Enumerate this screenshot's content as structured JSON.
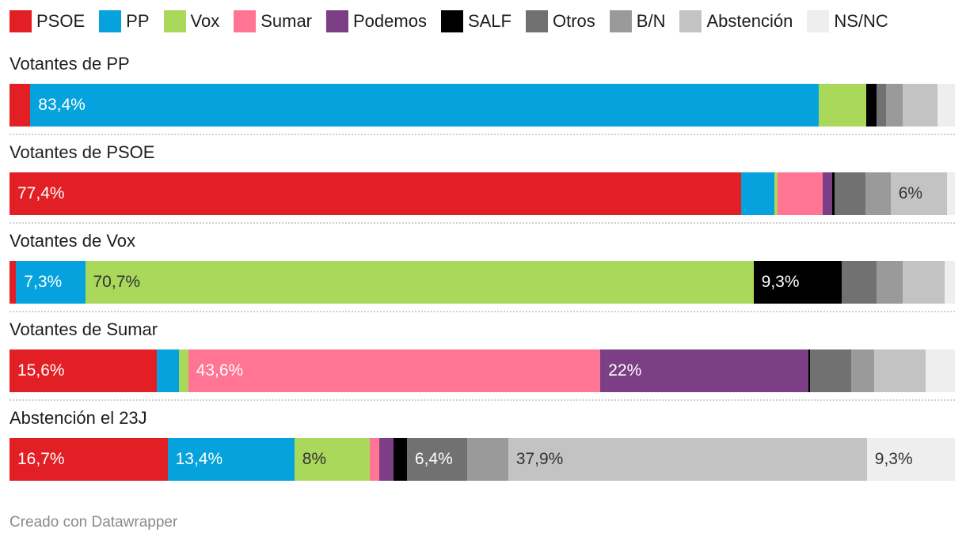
{
  "chart_data": {
    "type": "bar",
    "orientation": "horizontal",
    "stacked": true,
    "legend_position": "top",
    "categories": [
      "Votantes de PP",
      "Votantes de PSOE",
      "Votantes de Vox",
      "Votantes de Sumar",
      "Abstención el 23J"
    ],
    "series": [
      {
        "name": "PSOE",
        "color": "#e21f24",
        "values": [
          2.2,
          77.4,
          0.7,
          15.6,
          16.7
        ]
      },
      {
        "name": "PP",
        "color": "#05a2dd",
        "values": [
          83.4,
          3.5,
          7.3,
          2.3,
          13.4
        ]
      },
      {
        "name": "Vox",
        "color": "#a9d85a",
        "values": [
          5.0,
          0.3,
          70.7,
          1.0,
          8.0
        ]
      },
      {
        "name": "Sumar",
        "color": "#ff7593",
        "values": [
          0.0,
          4.8,
          0.0,
          43.6,
          1.0
        ]
      },
      {
        "name": "Podemos",
        "color": "#7c3f85",
        "values": [
          0.0,
          1.0,
          0.0,
          22.0,
          1.5
        ]
      },
      {
        "name": "SALF",
        "color": "#000000",
        "values": [
          1.1,
          0.3,
          9.3,
          0.2,
          1.4
        ]
      },
      {
        "name": "Otros",
        "color": "#717171",
        "values": [
          1.0,
          3.2,
          3.7,
          4.3,
          6.4
        ]
      },
      {
        "name": "B/N",
        "color": "#9a9a9a",
        "values": [
          1.8,
          2.7,
          2.8,
          2.5,
          4.3
        ]
      },
      {
        "name": "Abstención",
        "color": "#c3c3c3",
        "values": [
          3.7,
          6.0,
          4.4,
          5.4,
          37.9
        ]
      },
      {
        "name": "NS/NC",
        "color": "#eeeeee",
        "values": [
          1.8,
          0.8,
          1.1,
          3.1,
          9.3
        ]
      }
    ],
    "data_labels": [
      {
        "row": 0,
        "series": 1,
        "text": "83,4%",
        "dark": false
      },
      {
        "row": 1,
        "series": 0,
        "text": "77,4%",
        "dark": false
      },
      {
        "row": 1,
        "series": 8,
        "text": "6%",
        "dark": true
      },
      {
        "row": 2,
        "series": 1,
        "text": "7,3%",
        "dark": false
      },
      {
        "row": 2,
        "series": 2,
        "text": "70,7%",
        "dark": true
      },
      {
        "row": 2,
        "series": 5,
        "text": "9,3%",
        "dark": false
      },
      {
        "row": 3,
        "series": 0,
        "text": "15,6%",
        "dark": false
      },
      {
        "row": 3,
        "series": 3,
        "text": "43,6%",
        "dark": false
      },
      {
        "row": 3,
        "series": 4,
        "text": "22%",
        "dark": false
      },
      {
        "row": 4,
        "series": 0,
        "text": "16,7%",
        "dark": false
      },
      {
        "row": 4,
        "series": 1,
        "text": "13,4%",
        "dark": false
      },
      {
        "row": 4,
        "series": 2,
        "text": "8%",
        "dark": true
      },
      {
        "row": 4,
        "series": 6,
        "text": "6,4%",
        "dark": false
      },
      {
        "row": 4,
        "series": 8,
        "text": "37,9%",
        "dark": true
      },
      {
        "row": 4,
        "series": 9,
        "text": "9,3%",
        "dark": true
      }
    ]
  },
  "footer": {
    "text": "Creado con Datawrapper"
  }
}
